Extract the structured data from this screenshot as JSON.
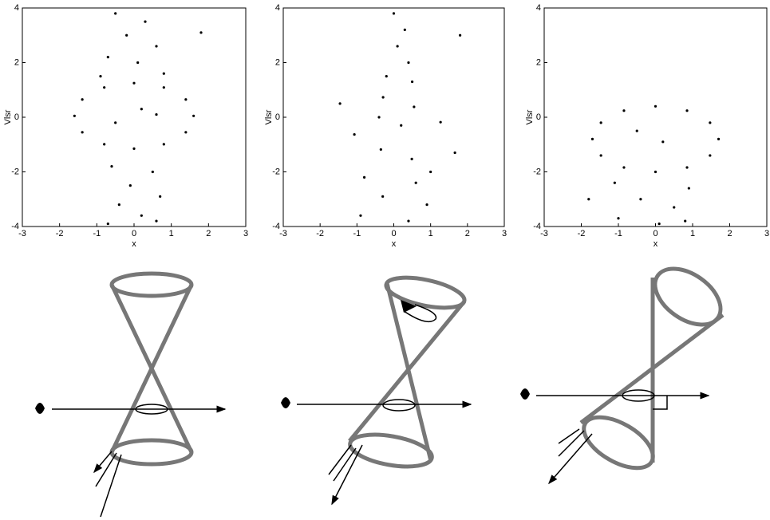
{
  "chart_data": [
    {
      "type": "scatter",
      "xlabel": "x",
      "ylabel": "Vlsr",
      "color": "#000000",
      "xlim": [
        -3,
        3
      ],
      "ylim": [
        -4,
        4
      ],
      "xticks": [
        -3,
        -2,
        -1,
        0,
        1,
        2,
        3
      ],
      "yticks": [
        -4,
        -2,
        0,
        2,
        4
      ],
      "x": [
        1.6,
        1.39,
        0.8,
        0,
        -0.8,
        -1.39,
        -1.6,
        -1.39,
        -0.8,
        0,
        0.8,
        1.39,
        -0.5,
        0.3,
        -0.2,
        0.6,
        -0.7,
        0.1,
        0.8,
        -0.9,
        -0.6,
        0.5,
        -0.1,
        0.7,
        -0.4,
        0.2,
        -0.7,
        0.6,
        0.2,
        -0.5,
        0.6,
        1.8
      ],
      "y": [
        0.05,
        0.65,
        1.09,
        1.25,
        1.09,
        0.65,
        0.05,
        -0.55,
        -0.99,
        -1.15,
        -0.99,
        -0.55,
        3.8,
        3.5,
        3.0,
        2.6,
        2.2,
        2.0,
        1.6,
        1.5,
        -1.8,
        -2.0,
        -2.5,
        -2.9,
        -3.2,
        -3.6,
        -3.9,
        -3.8,
        0.3,
        -0.2,
        0.1,
        3.1
      ]
    },
    {
      "type": "scatter",
      "xlabel": "x",
      "ylabel": "Vlsr",
      "color": "#000000",
      "xlim": [
        -3,
        3
      ],
      "ylim": [
        -4,
        4
      ],
      "xticks": [
        -3,
        -2,
        -1,
        0,
        1,
        2,
        3
      ],
      "yticks": [
        -4,
        -2,
        0,
        2,
        4
      ],
      "x": [
        1.66,
        1.27,
        0.55,
        -0.29,
        -1.46,
        -1.07,
        -0.35,
        0.49,
        0.0,
        0.3,
        0.1,
        0.4,
        -0.2,
        0.5,
        -0.8,
        0.6,
        -0.3,
        0.9,
        -0.9,
        0.4,
        1.0,
        0.2,
        -0.4,
        1.8
      ],
      "y": [
        -1.3,
        -0.18,
        0.38,
        0.73,
        0.5,
        -0.63,
        -1.18,
        -1.53,
        3.8,
        3.2,
        2.6,
        2.0,
        1.5,
        1.3,
        -2.2,
        -2.4,
        -2.9,
        -3.2,
        -3.6,
        -3.8,
        -2.0,
        -0.3,
        0.0,
        3.0
      ]
    },
    {
      "type": "scatter",
      "xlabel": "x",
      "ylabel": "Vlsr",
      "color": "#000000",
      "xlim": [
        -3,
        3
      ],
      "ylim": [
        -4,
        4
      ],
      "xticks": [
        -3,
        -2,
        -1,
        0,
        1,
        2,
        3
      ],
      "yticks": [
        -4,
        -2,
        0,
        2,
        4
      ],
      "x": [
        1.7,
        1.47,
        0.85,
        0,
        -0.85,
        -1.47,
        -1.7,
        -1.47,
        -0.85,
        0,
        0.85,
        1.47,
        0.2,
        -0.5,
        -1.1,
        0.9,
        -0.4,
        0.5,
        -1.0,
        0.1,
        0.8,
        -1.8
      ],
      "y": [
        -0.8,
        -0.2,
        0.24,
        0.4,
        0.24,
        -0.2,
        -0.8,
        -1.4,
        -1.84,
        -2.0,
        -1.84,
        -1.4,
        -0.9,
        -0.5,
        -2.4,
        -2.6,
        -3.0,
        -3.3,
        -3.7,
        -3.9,
        -3.8,
        -3.0
      ]
    }
  ]
}
